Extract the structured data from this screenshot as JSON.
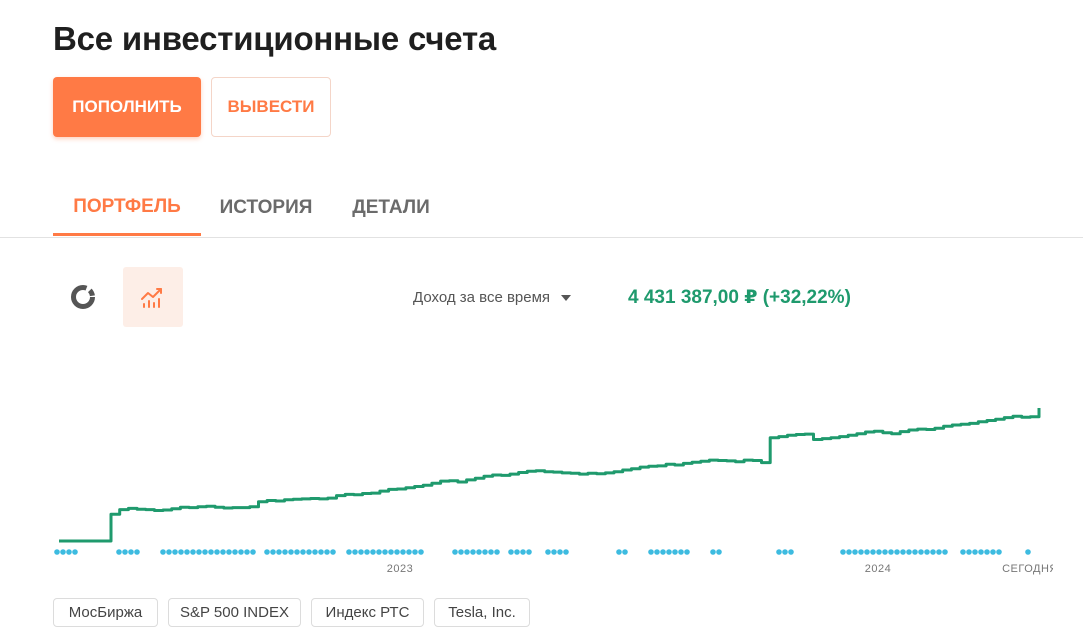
{
  "header": {
    "title": "Все инвестиционные счета"
  },
  "actions": {
    "deposit_label": "ПОПОЛНИТЬ",
    "withdraw_label": "ВЫВЕСТИ"
  },
  "tabs": [
    {
      "label": "ПОРТФЕЛЬ",
      "active": true
    },
    {
      "label": "ИСТОРИЯ",
      "active": false
    },
    {
      "label": "ДЕТАЛИ",
      "active": false
    }
  ],
  "view_toggle": {
    "icons": [
      "donut-chart-icon",
      "line-chart-icon"
    ],
    "selected": "line-chart-icon"
  },
  "summary": {
    "period_label": "Доход за все время",
    "income_value": "4 431 387,00 ₽ (+32,22%)"
  },
  "colors": {
    "accent": "#ff7a45",
    "positive": "#1f9a6d",
    "event_dot": "#3dbbe0"
  },
  "chart_data": {
    "type": "line",
    "x_tick_labels": [
      "2023",
      "2024",
      "СЕГОДНЯ"
    ],
    "series": [
      {
        "values": [
          0,
          0,
          0,
          0,
          0,
          0,
          6.5,
          7.6,
          7.9,
          7.7,
          7.6,
          7.4,
          7.5,
          7.8,
          8.2,
          8.1,
          8.3,
          8.4,
          8.2,
          8.0,
          8.1,
          8.1,
          8.3,
          9.5,
          9.8,
          9.7,
          10.0,
          10.1,
          10.2,
          10.3,
          10.2,
          10.4,
          11.0,
          11.3,
          11.2,
          11.5,
          11.6,
          12.1,
          12.5,
          12.6,
          12.9,
          13.2,
          13.5,
          14.0,
          14.5,
          14.6,
          14.3,
          14.8,
          15.2,
          15.7,
          16.0,
          15.9,
          16.2,
          16.6,
          16.9,
          17.0,
          16.8,
          16.7,
          16.5,
          16.4,
          16.2,
          16.4,
          16.3,
          16.5,
          16.8,
          17.2,
          17.5,
          17.9,
          18.1,
          18.2,
          18.6,
          18.4,
          18.8,
          19.1,
          19.3,
          19.6,
          19.5,
          19.4,
          19.2,
          19.6,
          19.5,
          19.0,
          25.0,
          25.3,
          25.6,
          25.8,
          25.9,
          24.6,
          24.8,
          25.0,
          25.3,
          25.6,
          26.0,
          26.4,
          26.6,
          26.2,
          26.0,
          26.5,
          26.9,
          27.1,
          27.0,
          27.3,
          27.8,
          28.1,
          28.3,
          28.5,
          28.9,
          29.2,
          29.5,
          29.9,
          30.2,
          30.0,
          30.1,
          32.22
        ]
      }
    ],
    "y_label": "",
    "grid": false,
    "legend": false,
    "event_markers": true
  },
  "indices": [
    "МосБиржа",
    "S&P 500 INDEX",
    "Индекс РТС",
    "Tesla, Inc."
  ]
}
